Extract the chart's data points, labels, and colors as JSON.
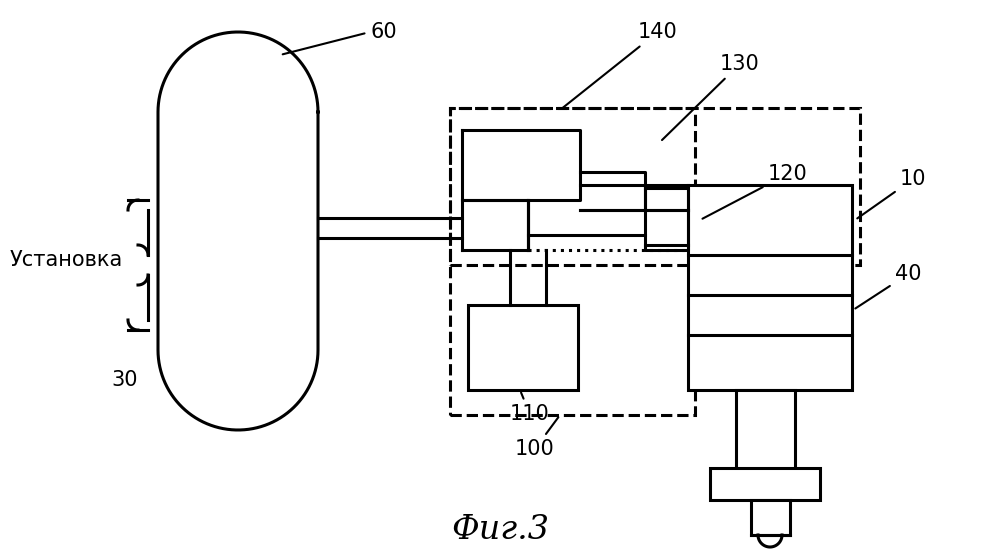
{
  "title": "Фиг.3",
  "title_fontsize": 24,
  "background_color": "#ffffff",
  "line_color": "#000000",
  "label_fontsize": 15
}
